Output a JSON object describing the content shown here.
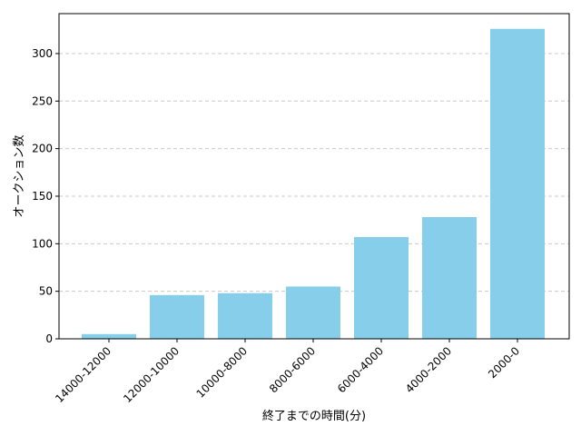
{
  "chart_data": {
    "type": "bar",
    "title": "",
    "xlabel": "終了までの時間(分)",
    "ylabel": "オークション数",
    "categories": [
      "14000-12000",
      "12000-10000",
      "10000-8000",
      "8000-6000",
      "6000-4000",
      "4000-2000",
      "2000-0"
    ],
    "values": [
      5,
      46,
      48,
      55,
      107,
      128,
      326
    ],
    "ylim": [
      0,
      342
    ],
    "yticks": [
      0,
      50,
      100,
      150,
      200,
      250,
      300
    ],
    "grid": "y-dashed",
    "bar_color": "#87ceeb",
    "grid_color": "#c8c8c8"
  }
}
